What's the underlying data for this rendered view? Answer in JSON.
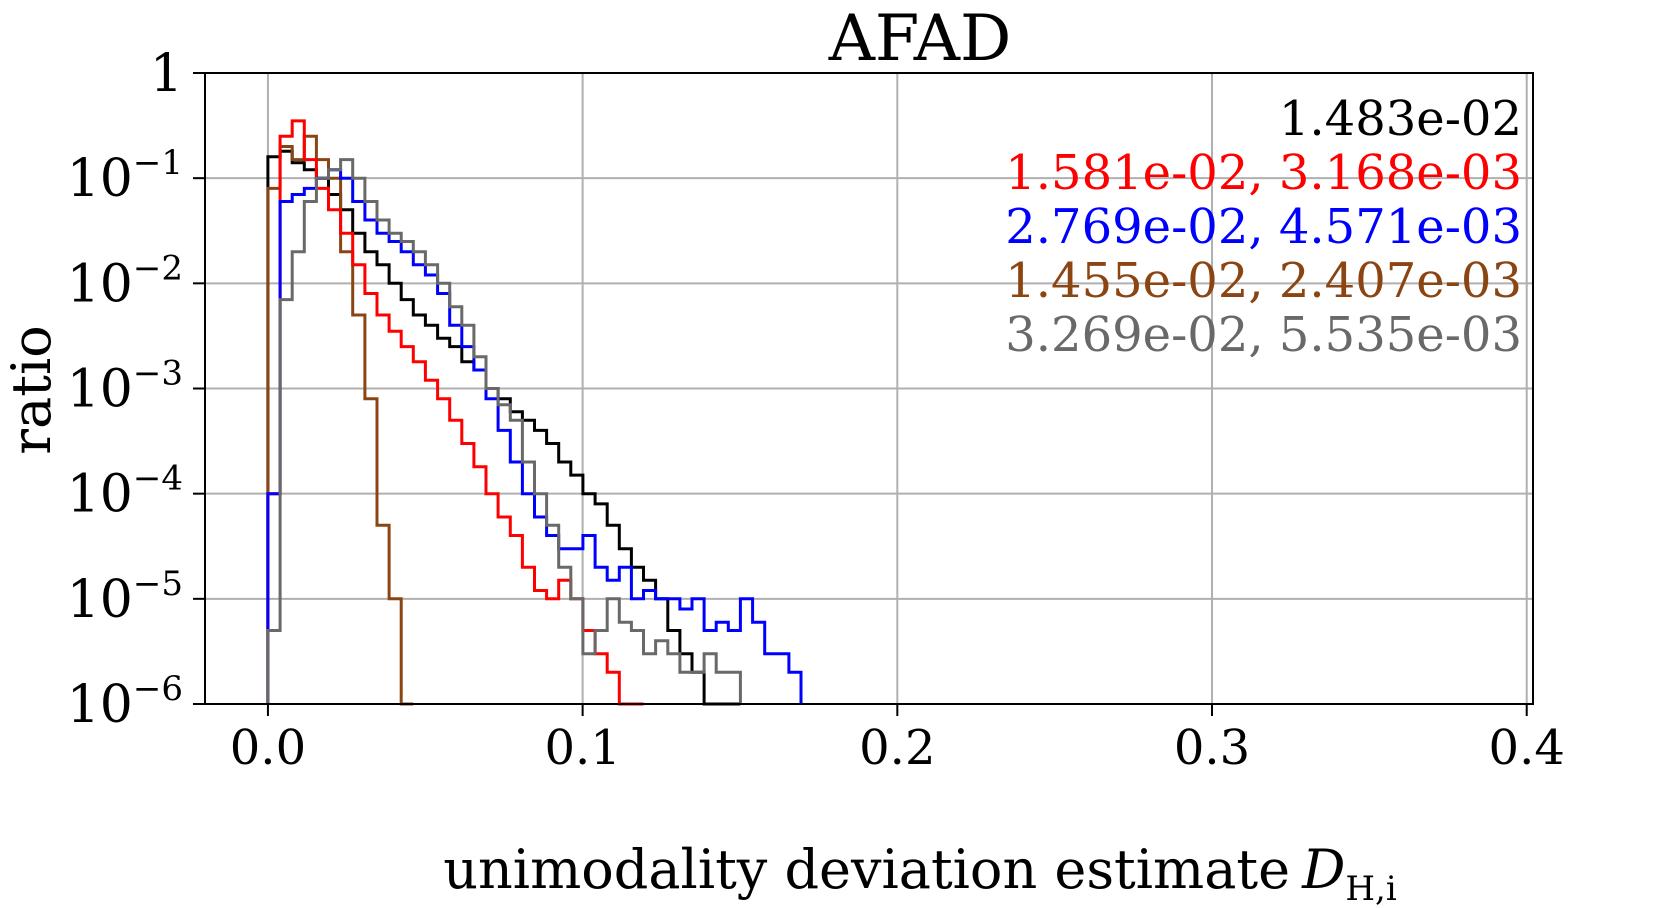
{
  "chart_data": {
    "type": "step-histogram",
    "title": "AFAD",
    "xlabel": "unimodality deviation estimate",
    "xlabel_symbol": "D",
    "xlabel_subscript": "H,i",
    "ylabel": "ratio",
    "xlim": [
      -0.02,
      0.402
    ],
    "ylim": [
      1e-06,
      1
    ],
    "yscale": "log",
    "grid": true,
    "xticks": [
      {
        "value": 0.0,
        "label": "0.0"
      },
      {
        "value": 0.1,
        "label": "0.1"
      },
      {
        "value": 0.2,
        "label": "0.2"
      },
      {
        "value": 0.3,
        "label": "0.3"
      },
      {
        "value": 0.4,
        "label": "0.4"
      }
    ],
    "yticks": [
      {
        "value": 1,
        "base": "1",
        "exp": ""
      },
      {
        "value": 0.1,
        "base": "10",
        "exp": "−1"
      },
      {
        "value": 0.01,
        "base": "10",
        "exp": "−2"
      },
      {
        "value": 0.001,
        "base": "10",
        "exp": "−3"
      },
      {
        "value": 0.0001,
        "base": "10",
        "exp": "−4"
      },
      {
        "value": 1e-05,
        "base": "10",
        "exp": "−5"
      },
      {
        "value": 1e-06,
        "base": "10",
        "exp": "−6"
      }
    ],
    "legend_position": "top-right",
    "legend": [
      {
        "text": "1.483e-02",
        "color": "#000000"
      },
      {
        "text": "1.581e-02, 3.168e-03",
        "color": "#ff0000"
      },
      {
        "text": "2.769e-02, 4.571e-03",
        "color": "#0000ff"
      },
      {
        "text": "1.455e-02, 2.407e-03",
        "color": "#8b4513"
      },
      {
        "text": "3.269e-02, 5.535e-03",
        "color": "#696969"
      }
    ],
    "series": [
      {
        "name": "black",
        "color": "#000000",
        "bin_start": 0.0,
        "bin_width": 0.00385,
        "values": [
          0.16,
          0.18,
          0.14,
          0.12,
          0.1,
          0.07,
          0.05,
          0.03,
          0.02,
          0.015,
          0.01,
          0.007,
          0.005,
          0.004,
          0.003,
          0.0025,
          0.0018,
          0.0015,
          0.001,
          0.0008,
          0.0006,
          0.0005,
          0.0004,
          0.0003,
          0.0002,
          0.00015,
          0.0001,
          8e-05,
          5e-05,
          3e-05,
          2e-05,
          1.5e-05,
          1e-05,
          5e-06,
          3e-06,
          2e-06,
          1e-06,
          1e-06,
          1e-06
        ]
      },
      {
        "name": "red",
        "color": "#ff0000",
        "bin_start": 0.0,
        "bin_width": 0.00385,
        "values": [
          0.0001,
          0.25,
          0.35,
          0.15,
          0.08,
          0.05,
          0.03,
          0.015,
          0.008,
          0.005,
          0.0035,
          0.0025,
          0.0018,
          0.0012,
          0.0008,
          0.0005,
          0.0003,
          0.00018,
          0.0001,
          6e-05,
          4e-05,
          2e-05,
          1.2e-05,
          1e-05,
          1.5e-05,
          1e-05,
          5e-06,
          3e-06,
          2e-06,
          1e-06,
          1e-06
        ]
      },
      {
        "name": "blue",
        "color": "#0000ff",
        "bin_start": 0.0,
        "bin_width": 0.00385,
        "values": [
          0.0001,
          0.06,
          0.07,
          0.08,
          0.1,
          0.12,
          0.1,
          0.06,
          0.04,
          0.03,
          0.025,
          0.02,
          0.015,
          0.012,
          0.008,
          0.004,
          0.0025,
          0.0015,
          0.0008,
          0.0004,
          0.0002,
          0.0001,
          6e-05,
          4e-05,
          3e-05,
          3e-05,
          4e-05,
          2e-05,
          1.5e-05,
          2e-05,
          1e-05,
          1.2e-05,
          1e-05,
          1e-05,
          8e-06,
          1e-05,
          5e-06,
          6e-06,
          5e-06,
          1e-05,
          6e-06,
          3e-06,
          3e-06,
          2e-06
        ]
      },
      {
        "name": "brown",
        "color": "#8b4513",
        "bin_start": 0.0,
        "bin_width": 0.00385,
        "values": [
          0.08,
          0.2,
          0.15,
          0.25,
          0.15,
          0.1,
          0.02,
          0.005,
          0.0008,
          5e-05,
          1e-05,
          1e-06
        ]
      },
      {
        "name": "gray",
        "color": "#696969",
        "bin_start": 0.0,
        "bin_width": 0.00385,
        "values": [
          5e-06,
          0.007,
          0.02,
          0.06,
          0.1,
          0.12,
          0.15,
          0.1,
          0.06,
          0.04,
          0.03,
          0.025,
          0.02,
          0.015,
          0.01,
          0.006,
          0.004,
          0.002,
          0.001,
          0.0007,
          0.0005,
          0.0002,
          0.0001,
          5e-05,
          2e-05,
          1e-05,
          3e-06,
          5e-06,
          1e-05,
          6e-06,
          5e-06,
          3e-06,
          4e-06,
          3e-06,
          2e-06,
          2e-06,
          3e-06,
          2e-06,
          2e-06
        ]
      }
    ]
  }
}
